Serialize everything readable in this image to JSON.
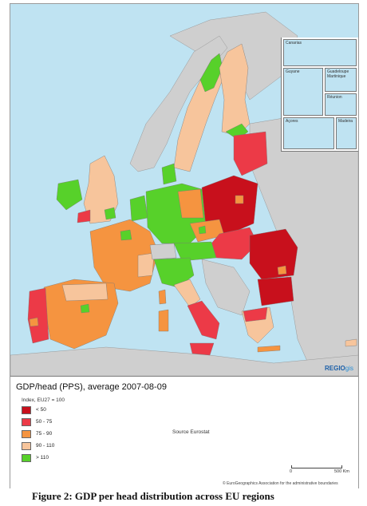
{
  "colors": {
    "sea": "#bfe3f2",
    "land_outside": "#cfcfcf",
    "lt50": "#c8101c",
    "50_75": "#ec3a47",
    "75_90": "#f59440",
    "90_110": "#f7c59c",
    "gt110": "#57d12a"
  },
  "legend": {
    "title": "GDP/head (PPS), average 2007-08-09",
    "subtitle": "Index, EU27 = 100",
    "items": [
      {
        "label": "< 50",
        "color": "#c8101c"
      },
      {
        "label": "50 - 75",
        "color": "#ec3a47"
      },
      {
        "label": "75 - 90",
        "color": "#f59440"
      },
      {
        "label": "90 - 110",
        "color": "#f7c59c"
      },
      {
        "label": "> 110",
        "color": "#57d12a"
      }
    ]
  },
  "source": "Source Eurostat",
  "scale": {
    "zero": "0",
    "max": "500 Km"
  },
  "copyright": "© EuroGeographics Association for the administrative boundaries",
  "brand": {
    "main": "REGIO",
    "suffix": "gis"
  },
  "insets": {
    "canarias": "Canarias",
    "guyane": "Guyane",
    "guadeloupe_martinique": "Guadeloupe Martinique",
    "reunion": "Réunion",
    "acores": "Açores",
    "madeira": "Madeira"
  },
  "caption": "Figure 2: GDP per head distribution across EU regions"
}
